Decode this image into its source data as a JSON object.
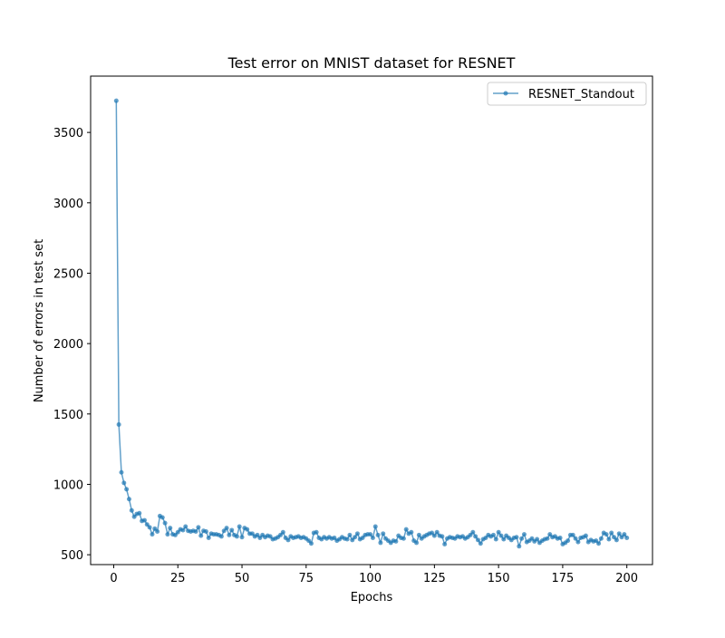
{
  "chart_data": {
    "type": "line",
    "title": "Test error on MNIST dataset for RESNET",
    "xlabel": "Epochs",
    "ylabel": "Number of errors in test set",
    "xlim": [
      -9,
      210
    ],
    "ylim": [
      430,
      3900
    ],
    "xticks": [
      0,
      25,
      50,
      75,
      100,
      125,
      150,
      175,
      200
    ],
    "yticks": [
      500,
      1000,
      1500,
      2000,
      2500,
      3000,
      3500
    ],
    "grid": false,
    "legend_position": "top-right",
    "colors": {
      "series": "#1f77b4"
    },
    "series": [
      {
        "name": "RESNET_Standout",
        "marker": "dot",
        "x_start": 1,
        "x_step": 1,
        "values": [
          3725,
          1425,
          1085,
          1010,
          965,
          895,
          815,
          770,
          790,
          795,
          740,
          745,
          715,
          695,
          645,
          685,
          665,
          775,
          765,
          725,
          645,
          690,
          645,
          640,
          660,
          680,
          675,
          700,
          670,
          665,
          670,
          665,
          695,
          635,
          670,
          665,
          620,
          650,
          645,
          645,
          640,
          630,
          670,
          690,
          640,
          675,
          640,
          630,
          700,
          625,
          690,
          680,
          650,
          650,
          630,
          640,
          620,
          640,
          625,
          635,
          630,
          610,
          615,
          625,
          640,
          660,
          620,
          605,
          630,
          620,
          625,
          630,
          620,
          625,
          615,
          600,
          580,
          655,
          660,
          620,
          610,
          625,
          615,
          625,
          615,
          620,
          600,
          610,
          625,
          615,
          610,
          640,
          605,
          625,
          650,
          610,
          620,
          640,
          645,
          645,
          620,
          700,
          640,
          585,
          650,
          615,
          600,
          585,
          600,
          595,
          635,
          620,
          615,
          680,
          650,
          660,
          600,
          585,
          640,
          615,
          630,
          640,
          650,
          655,
          635,
          660,
          635,
          630,
          575,
          615,
          625,
          620,
          615,
          630,
          625,
          630,
          615,
          625,
          640,
          660,
          630,
          605,
          580,
          610,
          620,
          640,
          630,
          640,
          610,
          660,
          635,
          610,
          635,
          620,
          605,
          620,
          625,
          560,
          615,
          645,
          590,
          600,
          615,
          595,
          610,
          585,
          600,
          610,
          615,
          645,
          625,
          630,
          615,
          620,
          575,
          585,
          600,
          640,
          640,
          615,
          590,
          620,
          625,
          635,
          590,
          605,
          595,
          600,
          580,
          615,
          655,
          645,
          610,
          655,
          625,
          605,
          650,
          625,
          645,
          620
        ]
      }
    ]
  }
}
